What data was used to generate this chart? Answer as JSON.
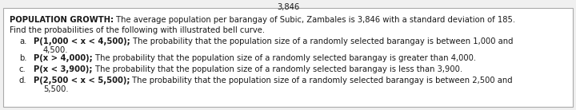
{
  "title_bold": "POPULATION GROWTH:",
  "title_normal": " The average population per barangay of Subic, Zambales is 3,846 with a standard deviation of 185.",
  "subtitle": "Find the probabilities of the following with illustrated bell curve.",
  "items": [
    {
      "label": "a.",
      "line1_bold": "P(1,000 < x < 4,500);",
      "line1_normal": " The probability that the population size of a randomly selected barangay is between 1,000 and",
      "line2": "4,500."
    },
    {
      "label": "b.",
      "line1_bold": "P(x > 4,000);",
      "line1_normal": " The probability that the population size of a randomly selected barangay is greater than 4,000.",
      "line2": ""
    },
    {
      "label": "c.",
      "line1_bold": "P(x < 3,900);",
      "line1_normal": " The probability that the population size of a randomly selected barangay is less than 3,900.",
      "line2": ""
    },
    {
      "label": "d.",
      "line1_bold": "P(2,500 < x < 5,500);",
      "line1_normal": " The probability that the population size of a randomly selected barangay is between 2,500 and",
      "line2": "5,500."
    }
  ],
  "bg_color": "#f0f0f0",
  "box_color": "#ffffff",
  "border_color": "#aaaaaa",
  "text_color": "#1a1a1a",
  "font_size": 7.2,
  "fig_width": 7.2,
  "fig_height": 1.38,
  "dpi": 100
}
